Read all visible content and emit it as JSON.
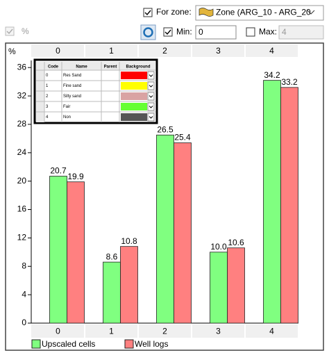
{
  "toolbar": {
    "for_zone": "For zone:",
    "zone": "Zone (ARG_10 - ARG_20",
    "percent": "%",
    "min_label": "Min:",
    "min_value": "0",
    "max_label": "Max:",
    "max_value": "4"
  },
  "zone_table": {
    "columns": [
      "Code",
      "Name",
      "Parent",
      "Background"
    ],
    "rows": [
      {
        "code": "0",
        "name": "Res Sand",
        "color": "#ff0000"
      },
      {
        "code": "1",
        "name": "Fine sand",
        "color": "#ffff00"
      },
      {
        "code": "2",
        "name": "Silty sand",
        "color": "#d9a3a3"
      },
      {
        "code": "3",
        "name": "Fair",
        "color": "#66ff33"
      },
      {
        "code": "4",
        "name": "Non",
        "color": "#555555"
      }
    ]
  },
  "chart_data": {
    "type": "bar",
    "y_label": "%",
    "categories": [
      "0",
      "1",
      "2",
      "3",
      "4"
    ],
    "series": [
      {
        "name": "Upscaled cells",
        "color": "#80ff80",
        "values": [
          20.7,
          8.6,
          26.5,
          10.0,
          34.2
        ],
        "value_labels": [
          "20.7",
          "8.6",
          "26.5",
          "10.0",
          "34.2"
        ]
      },
      {
        "name": "Well logs",
        "color": "#ff8080",
        "values": [
          19.9,
          10.8,
          25.4,
          10.6,
          33.2
        ],
        "value_labels": [
          "19.9",
          "10.8",
          "25.4",
          "10.6",
          "33.2"
        ]
      }
    ],
    "ylim": [
      0,
      37
    ],
    "yticks": [
      0,
      4,
      8,
      12,
      16,
      20,
      24,
      28,
      32,
      36
    ]
  }
}
